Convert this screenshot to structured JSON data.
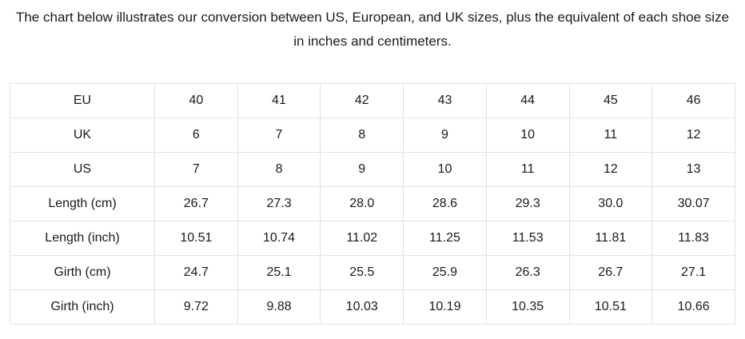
{
  "heading": {
    "text": "The chart below illustrates our conversion between US, European, and UK sizes, plus the equivalent of each shoe size in inches and centimeters."
  },
  "colors": {
    "background": "#ffffff",
    "text": "#1a1a1a",
    "table_border": "#e2e2e2"
  },
  "chart_data": {
    "type": "table",
    "title": "The chart below illustrates our conversion between US, European, and UK sizes, plus the equivalent of each shoe size in inches and centimeters.",
    "rows": [
      {
        "label": "EU",
        "values": [
          "40",
          "41",
          "42",
          "43",
          "44",
          "45",
          "46"
        ]
      },
      {
        "label": "UK",
        "values": [
          "6",
          "7",
          "8",
          "9",
          "10",
          "11",
          "12"
        ]
      },
      {
        "label": "US",
        "values": [
          "7",
          "8",
          "9",
          "10",
          "11",
          "12",
          "13"
        ]
      },
      {
        "label": "Length (cm)",
        "values": [
          "26.7",
          "27.3",
          "28.0",
          "28.6",
          "29.3",
          "30.0",
          "30.07"
        ]
      },
      {
        "label": "Length (inch)",
        "values": [
          "10.51",
          "10.74",
          "11.02",
          "11.25",
          "11.53",
          "11.81",
          "11.83"
        ]
      },
      {
        "label": "Girth (cm)",
        "values": [
          "24.7",
          "25.1",
          "25.5",
          "25.9",
          "26.3",
          "26.7",
          "27.1"
        ]
      },
      {
        "label": "Girth (inch)",
        "values": [
          "9.72",
          "9.88",
          "10.03",
          "10.19",
          "10.35",
          "10.51",
          "10.66"
        ]
      }
    ]
  }
}
